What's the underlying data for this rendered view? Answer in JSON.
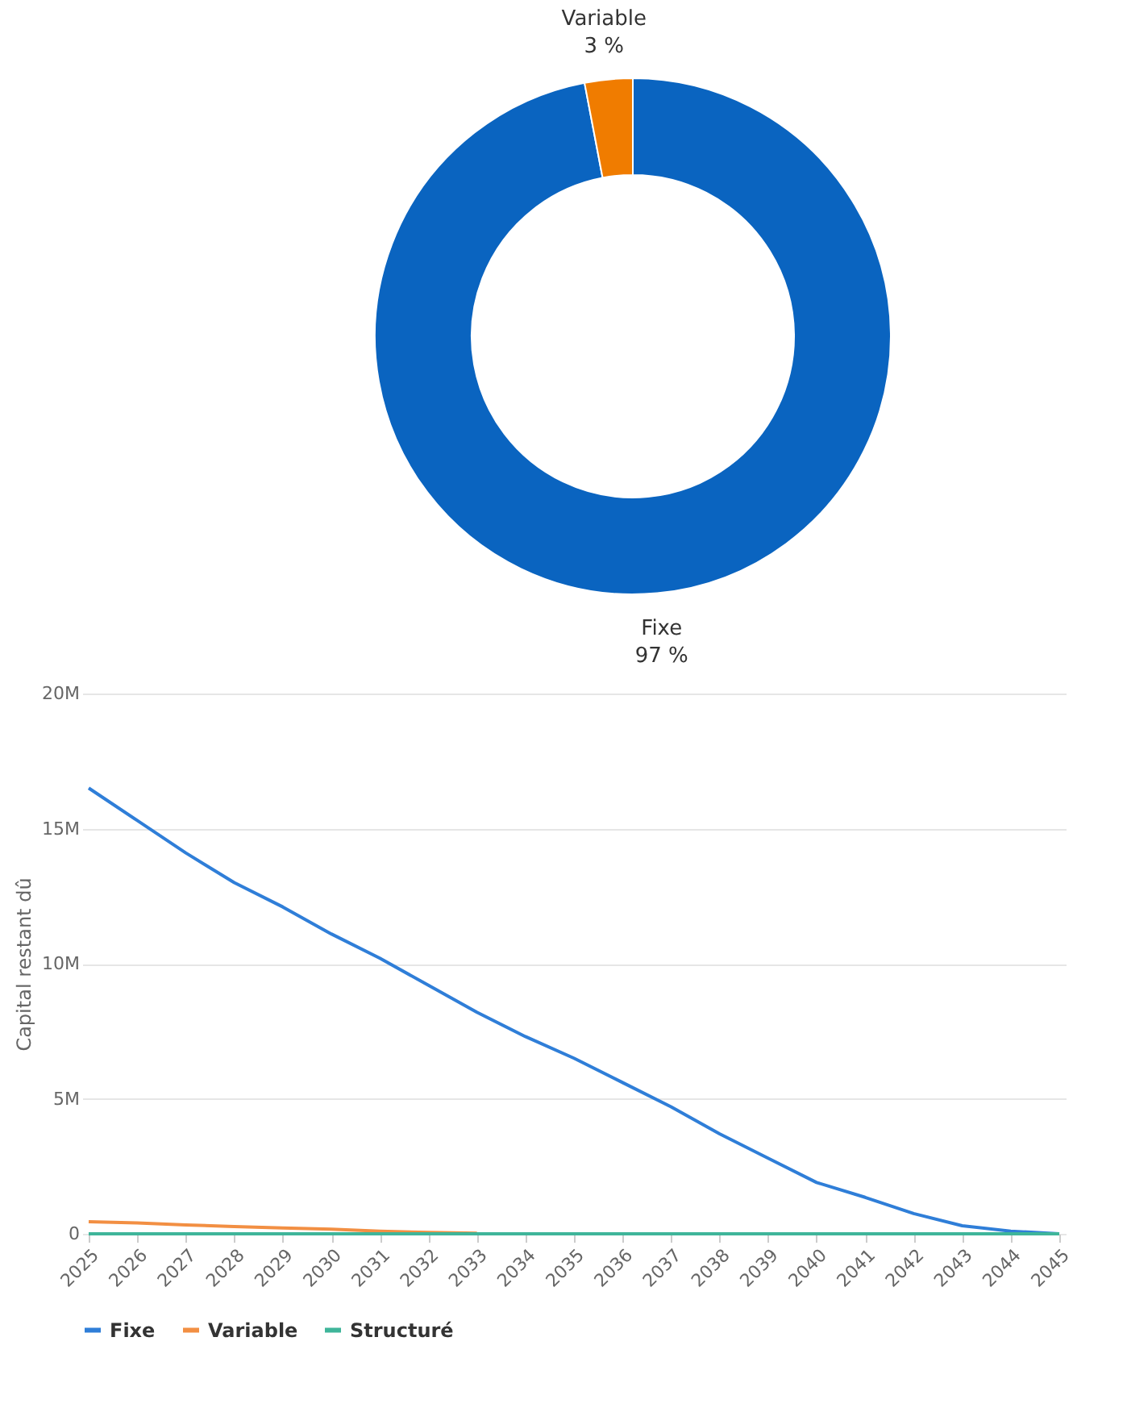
{
  "chart_data": [
    {
      "type": "donut",
      "categories": [
        "Fixe",
        "Variable"
      ],
      "values": [
        97,
        3
      ],
      "colors": [
        "#0a64c0",
        "#f07c00"
      ],
      "value_labels": [
        "97 %",
        "3 %"
      ]
    },
    {
      "type": "line",
      "ylabel": "Capital restant dû",
      "categories": [
        "2025",
        "2026",
        "2027",
        "2028",
        "2029",
        "2030",
        "2031",
        "2032",
        "2033",
        "2034",
        "2035",
        "2036",
        "2037",
        "2038",
        "2039",
        "2040",
        "2041",
        "2042",
        "2043",
        "2044",
        "2045"
      ],
      "series": [
        {
          "name": "Fixe",
          "color": "#2f7ed8",
          "values": [
            16500000,
            15300000,
            14100000,
            13000000,
            12100000,
            11100000,
            10200000,
            9200000,
            8200000,
            7300000,
            6500000,
            5600000,
            4700000,
            3700000,
            2800000,
            1900000,
            1350000,
            750000,
            300000,
            100000,
            0
          ]
        },
        {
          "name": "Variable",
          "color": "#f28f43",
          "values": [
            450000,
            400000,
            330000,
            270000,
            220000,
            170000,
            100000,
            50000,
            20000,
            null,
            null,
            null,
            null,
            null,
            null,
            null,
            null,
            null,
            null,
            null,
            null
          ]
        },
        {
          "name": "Structuré",
          "color": "#3fb59a",
          "values": [
            0,
            0,
            0,
            0,
            0,
            0,
            0,
            0,
            0,
            0,
            0,
            0,
            0,
            0,
            0,
            0,
            0,
            0,
            0,
            0,
            0
          ]
        }
      ],
      "ylim": [
        0,
        20000000
      ],
      "yticks": [
        {
          "value": 0,
          "label": "0"
        },
        {
          "value": 5000000,
          "label": "5M"
        },
        {
          "value": 10000000,
          "label": "10M"
        },
        {
          "value": 15000000,
          "label": "15M"
        },
        {
          "value": 20000000,
          "label": "20M"
        }
      ],
      "grid": "y",
      "legend": "bottom"
    }
  ]
}
